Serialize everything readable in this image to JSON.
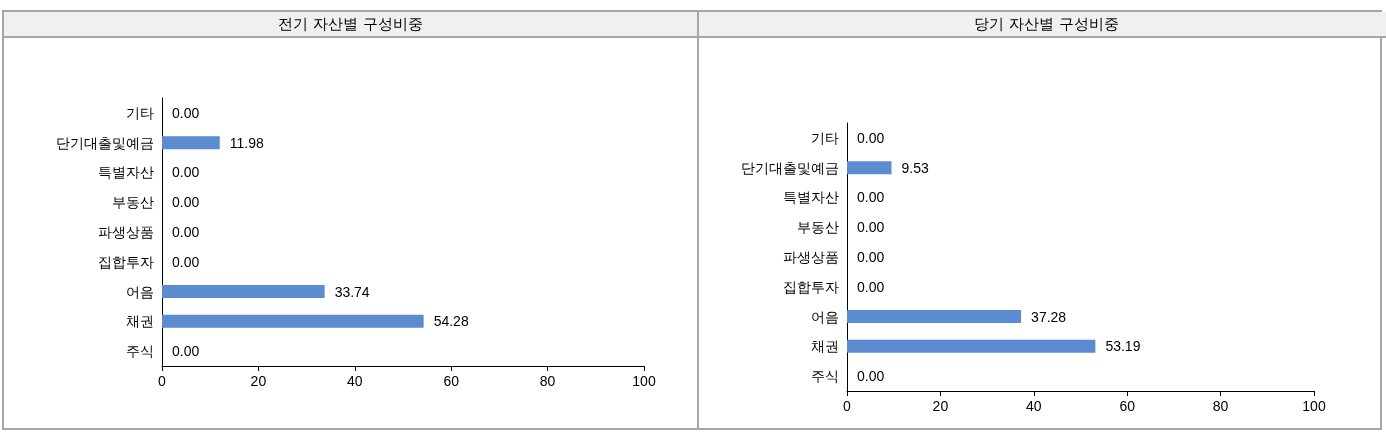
{
  "chart_data": [
    {
      "type": "bar",
      "orientation": "horizontal",
      "title": "전기 자산별 구성비중",
      "categories": [
        "기타",
        "단기대출및예금",
        "특별자산",
        "부동산",
        "파생상품",
        "집합투자",
        "어음",
        "채권",
        "주식"
      ],
      "values": [
        0,
        11.98,
        0,
        0,
        0,
        0,
        33.74,
        54.28,
        0
      ],
      "value_labels": [
        "0.00",
        "11.98",
        "0.00",
        "0.00",
        "0.00",
        "0.00",
        "33.74",
        "54.28",
        "0.00"
      ],
      "color": "#5b8ccf",
      "xlim": [
        0,
        100
      ],
      "xticks": [
        0,
        20,
        40,
        60,
        80,
        100
      ],
      "grid": false
    },
    {
      "type": "bar",
      "orientation": "horizontal",
      "title": "당기 자산별 구성비중",
      "categories": [
        "기타",
        "단기대출및예금",
        "특별자산",
        "부동산",
        "파생상품",
        "집합투자",
        "어음",
        "채권",
        "주식"
      ],
      "values": [
        0,
        9.53,
        0,
        0,
        0,
        0,
        37.28,
        53.19,
        0
      ],
      "value_labels": [
        "0.00",
        "9.53",
        "0.00",
        "0.00",
        "0.00",
        "0.00",
        "37.28",
        "53.19",
        "0.00"
      ],
      "color": "#5b8ccf",
      "xlim": [
        0,
        100
      ],
      "xticks": [
        0,
        20,
        40,
        60,
        80,
        100
      ],
      "grid": false
    }
  ]
}
